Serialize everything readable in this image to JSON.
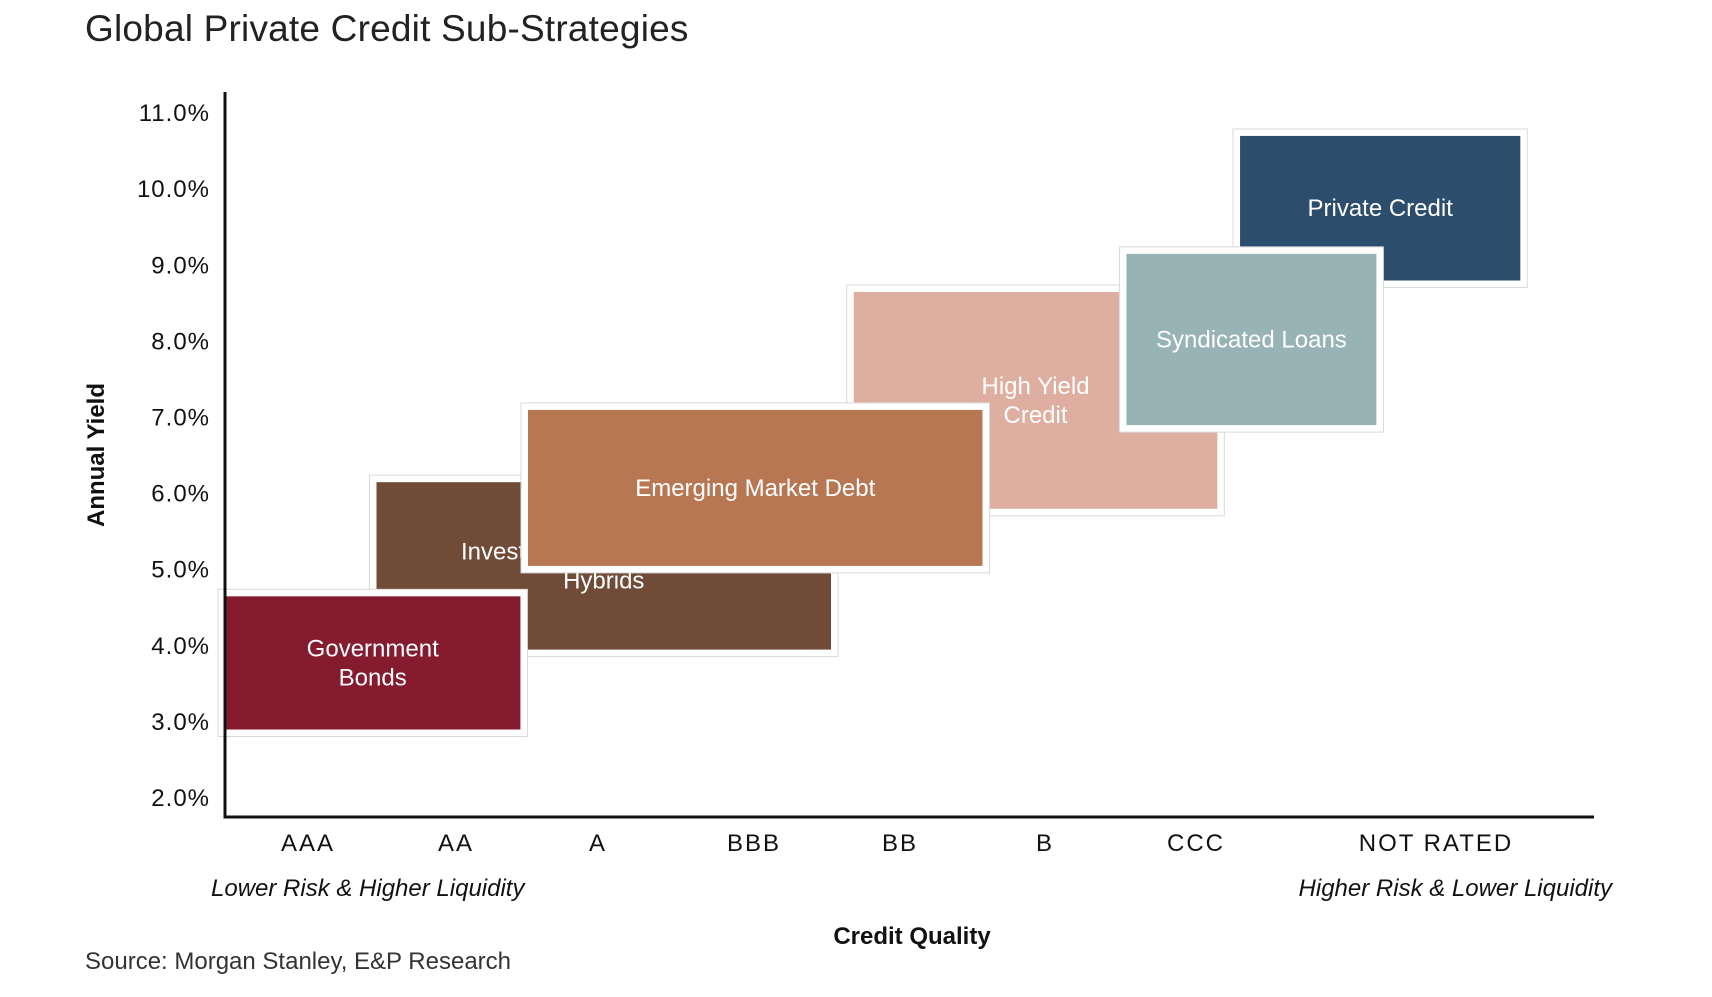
{
  "title": "Global Private Credit Sub-Strategies",
  "source": "Source: Morgan Stanley, E&P Research",
  "chart_data": {
    "type": "range-boxes",
    "title": "Global Private Credit Sub-Strategies",
    "xlabel": "Credit Quality",
    "ylabel": "Annual Yield",
    "categories": [
      "AAA",
      "AA",
      "A",
      "BBB",
      "BB",
      "B",
      "CCC",
      "NOT RATED"
    ],
    "y_ticks": [
      "2.0%",
      "3.0%",
      "4.0%",
      "5.0%",
      "6.0%",
      "7.0%",
      "8.0%",
      "9.0%",
      "10.0%",
      "11.0%"
    ],
    "ylim": [
      2.0,
      11.0
    ],
    "x_notes": {
      "left": "Lower Risk & Higher Liquidity",
      "right": "Higher Risk & Lower Liquidity"
    },
    "series": [
      {
        "name": "Private Credit",
        "label_lines": [
          "Private Credit"
        ],
        "x_from": 6.7,
        "x_to": 8.55,
        "y_low": 8.8,
        "y_high": 10.7,
        "color": "#2c4d6b"
      },
      {
        "name": "High Yield Credit",
        "label_lines": [
          "High Yield",
          "Credit"
        ],
        "x_from": 4.15,
        "x_to": 6.55,
        "y_low": 5.8,
        "y_high": 8.65,
        "color": "#deafa1"
      },
      {
        "name": "Syndicated Loans",
        "label_lines": [
          "Syndicated Loans"
        ],
        "x_from": 5.95,
        "x_to": 7.6,
        "y_low": 6.9,
        "y_high": 9.15,
        "color": "#98b3b6"
      },
      {
        "name": "Investment-Grade Credit & Hybrids",
        "label_lines": [
          "Investment-Grade Credit &",
          "Hybrids"
        ],
        "x_from": 1.0,
        "x_to": 4.0,
        "y_low": 3.95,
        "y_high": 6.15,
        "color": "#704b37"
      },
      {
        "name": "Emerging Market Debt",
        "label_lines": [
          "Emerging Market Debt"
        ],
        "x_from": 2.0,
        "x_to": 5.0,
        "y_low": 5.05,
        "y_high": 7.1,
        "color": "#b87753"
      },
      {
        "name": "Government Bonds",
        "label_lines": [
          "Government",
          "Bonds"
        ],
        "x_from": 0.0,
        "x_to": 1.95,
        "y_low": 2.9,
        "y_high": 4.65,
        "color": "#851b2e"
      }
    ]
  }
}
